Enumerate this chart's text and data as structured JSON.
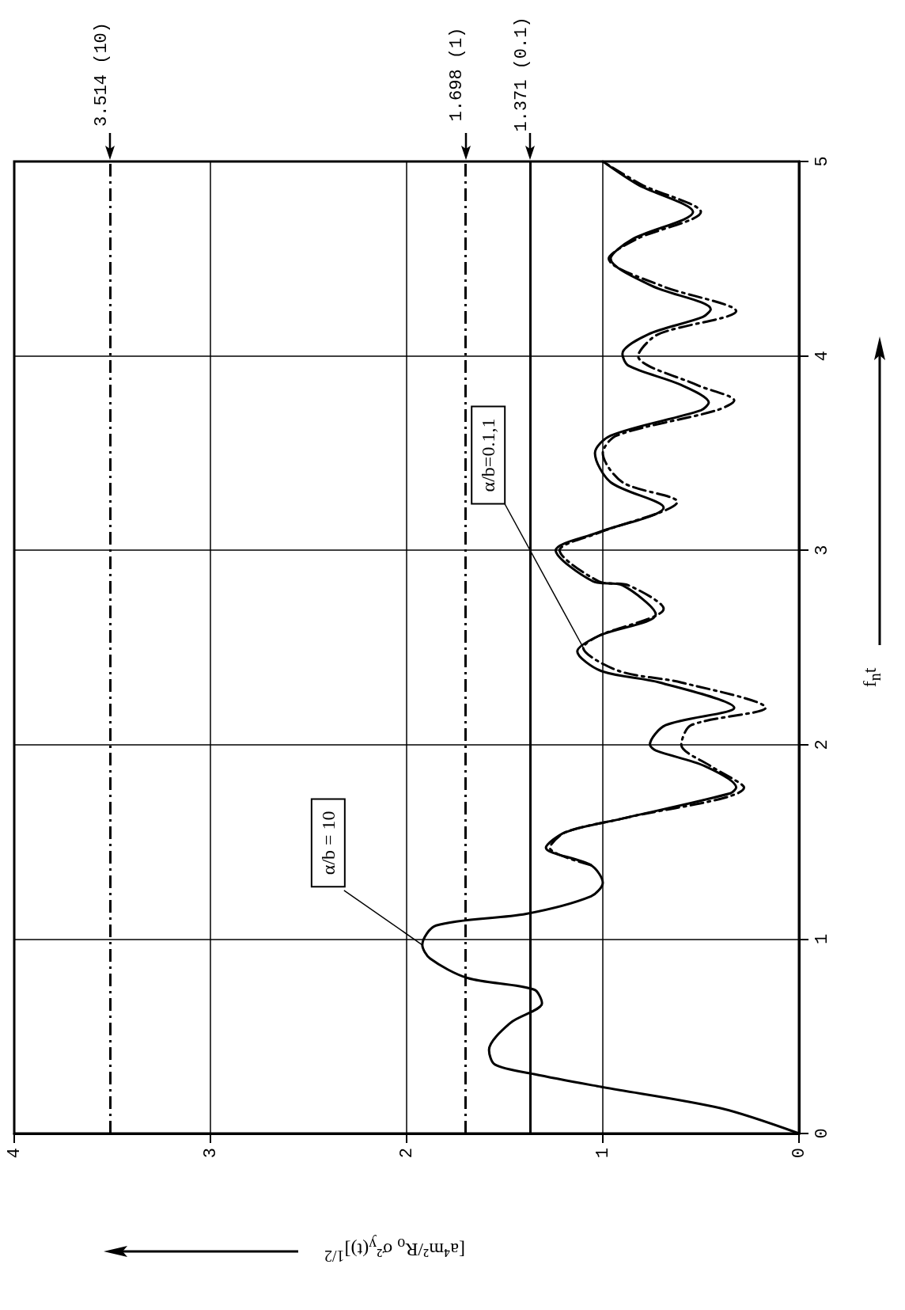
{
  "chart_data": {
    "type": "line",
    "xlabel": "[a⁴m²/R$_{o}$ σ²$_{y}$(t)]$^{1/2}$",
    "ylabel": "f$_{n}$t",
    "xlim": [
      4,
      0
    ],
    "xticks": [
      4,
      3,
      2,
      1,
      0
    ],
    "ylim": [
      0,
      5
    ],
    "yticks": [
      0,
      1,
      2,
      3,
      4,
      5
    ],
    "grid": true,
    "marker": "none",
    "series": [
      {
        "name": "α/b = 10",
        "color": "#000000",
        "line_style": "solid",
        "x": [
          0,
          0.4,
          1.01,
          1.35,
          1.55,
          1.58,
          1.47,
          1.31,
          1.35,
          1.69,
          1.88,
          1.92,
          1.85,
          1.39,
          1.06,
          1.0,
          1.06,
          1.29,
          1.19,
          0.9,
          0.35,
          0.32,
          0.48,
          0.73,
          0.76,
          0.68,
          0.33,
          0.71,
          1.01,
          1.13,
          1.02,
          0.73,
          0.9,
          1.05,
          1.24,
          1.03,
          0.69,
          0.96,
          1.04,
          0.96,
          0.5,
          0.46,
          0.6,
          0.87,
          0.9,
          0.77,
          0.49,
          0.45,
          0.75,
          0.96,
          0.85,
          0.54,
          0.82,
          1.0
        ],
        "values": [
          0,
          0.13,
          0.24,
          0.305,
          0.355,
          0.43,
          0.57,
          0.67,
          0.74,
          0.8,
          0.9,
          0.97,
          1.07,
          1.13,
          1.22,
          1.29,
          1.38,
          1.47,
          1.55,
          1.62,
          1.75,
          1.78,
          1.89,
          1.97,
          2.0,
          2.1,
          2.19,
          2.32,
          2.38,
          2.48,
          2.56,
          2.67,
          2.82,
          2.84,
          3.0,
          3.09,
          3.22,
          3.35,
          3.5,
          3.59,
          3.72,
          3.76,
          3.85,
          3.95,
          4.01,
          4.11,
          4.2,
          4.24,
          4.36,
          4.5,
          4.6,
          4.74,
          4.88,
          5.0
        ]
      },
      {
        "name": "α/b=0.1,1",
        "color": "#000000",
        "line_style": "dashed",
        "x": [
          1.06,
          1.27,
          1.19,
          0.9,
          0.28,
          0.45,
          0.6,
          0.55,
          0.17,
          0.6,
          0.92,
          1.1,
          1.02,
          0.69,
          0.87,
          1.02,
          1.22,
          1.02,
          0.62,
          0.9,
          1.0,
          0.93,
          0.42,
          0.33,
          0.52,
          0.82,
          0.72,
          0.32,
          0.7,
          0.97,
          0.83,
          0.5,
          0.8,
          1.0
        ],
        "values": [
          1.38,
          1.47,
          1.55,
          1.62,
          1.78,
          1.89,
          2.0,
          2.1,
          2.19,
          2.32,
          2.38,
          2.5,
          2.56,
          2.7,
          2.82,
          2.84,
          3.0,
          3.09,
          3.25,
          3.35,
          3.5,
          3.59,
          3.72,
          3.77,
          3.85,
          4.0,
          4.11,
          4.23,
          4.36,
          4.5,
          4.6,
          4.74,
          4.88,
          5.0
        ]
      }
    ],
    "ref_lines": [
      {
        "axis": "x",
        "value": 3.514,
        "label": "3.514 (10)",
        "line_style": "dashed"
      },
      {
        "axis": "x",
        "value": 1.698,
        "label": "1.698 (1)",
        "line_style": "dashed"
      },
      {
        "axis": "x",
        "value": 1.371,
        "label": "1.371 (0.1)",
        "line_style": "solid"
      }
    ]
  }
}
